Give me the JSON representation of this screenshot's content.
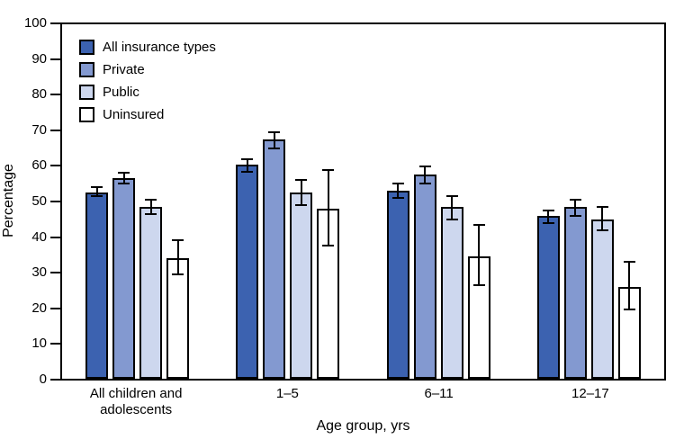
{
  "chart_data": {
    "type": "bar",
    "title": "",
    "xlabel": "Age group, yrs",
    "ylabel": "Percentage",
    "ylim": [
      0,
      100
    ],
    "yticks": [
      0,
      10,
      20,
      30,
      40,
      50,
      60,
      70,
      80,
      90,
      100
    ],
    "grid": false,
    "legend_position": "top-left-inside",
    "error_bars": true,
    "categories": [
      {
        "label": "All children and adolescents",
        "lines": [
          "All children and",
          "adolescents"
        ]
      },
      {
        "label": "1–5",
        "lines": [
          "1–5"
        ]
      },
      {
        "label": "6–11",
        "lines": [
          "6–11"
        ]
      },
      {
        "label": "12–17",
        "lines": [
          "12–17"
        ]
      }
    ],
    "series": [
      {
        "name": "All insurance types",
        "color": "#3c62b0",
        "values": [
          52.5,
          60.5,
          53,
          46
        ],
        "err_low": [
          51.5,
          58.5,
          51,
          44
        ],
        "err_high": [
          54,
          62,
          55,
          47.5
        ]
      },
      {
        "name": "Private",
        "color": "#8399d0",
        "values": [
          56.5,
          67.5,
          57.5,
          48.5
        ],
        "err_low": [
          55,
          65,
          55,
          46
        ],
        "err_high": [
          58,
          69.5,
          60,
          50.5
        ]
      },
      {
        "name": "Public",
        "color": "#cdd7ee",
        "values": [
          48.5,
          52.5,
          48.5,
          45
        ],
        "err_low": [
          46.5,
          49,
          45,
          42
        ],
        "err_high": [
          50.5,
          56,
          51.5,
          48.5
        ]
      },
      {
        "name": "Uninsured",
        "color": "#ffffff",
        "values": [
          34,
          48,
          34.5,
          26
        ],
        "err_low": [
          29.5,
          37.5,
          26.5,
          19.5
        ],
        "err_high": [
          39,
          59,
          43.5,
          33
        ]
      }
    ],
    "axis_color": "#000000",
    "background_color": "#ffffff"
  }
}
